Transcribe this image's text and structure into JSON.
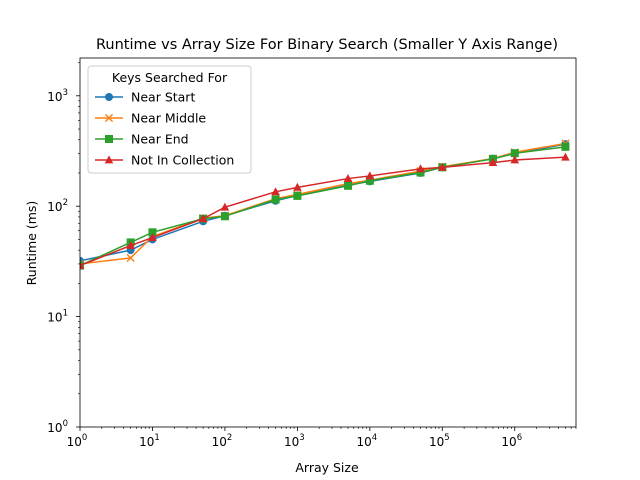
{
  "chart_data": {
    "type": "line",
    "title": "Runtime vs Array Size For Binary Search (Smaller Y Axis Range)",
    "xlabel": "Array Size",
    "ylabel": "Runtime (ms)",
    "xscale": "log",
    "yscale": "log",
    "xlim": [
      1,
      7000000
    ],
    "ylim": [
      1,
      2200
    ],
    "x_ticks": [
      1,
      10,
      100,
      1000,
      10000,
      100000,
      1000000
    ],
    "y_ticks": [
      1,
      10,
      100,
      1000
    ],
    "grid": false,
    "legend": {
      "title": "Keys Searched For",
      "placement": "top-left"
    },
    "x": [
      1,
      5,
      10,
      50,
      100,
      500,
      1000,
      5000,
      10000,
      50000,
      100000,
      500000,
      1000000,
      5000000
    ],
    "series": [
      {
        "name": "Near Start",
        "color": "#1f77b4",
        "marker": "circle",
        "values": [
          32,
          40,
          50,
          73,
          82,
          112,
          125,
          155,
          168,
          200,
          225,
          270,
          300,
          365
        ]
      },
      {
        "name": "Near Middle",
        "color": "#ff7f0e",
        "marker": "x",
        "values": [
          30,
          34,
          53,
          78,
          82,
          117,
          128,
          160,
          172,
          208,
          228,
          270,
          308,
          370
        ]
      },
      {
        "name": "Near End",
        "color": "#2ca02c",
        "marker": "square",
        "values": [
          29,
          47,
          58,
          77,
          81,
          115,
          124,
          153,
          170,
          202,
          225,
          268,
          302,
          345
        ]
      },
      {
        "name": "Not In Collection",
        "color": "#d62728",
        "marker": "triangle",
        "values": [
          29,
          44,
          52,
          77,
          98,
          135,
          148,
          178,
          188,
          218,
          225,
          248,
          262,
          278
        ]
      }
    ]
  }
}
